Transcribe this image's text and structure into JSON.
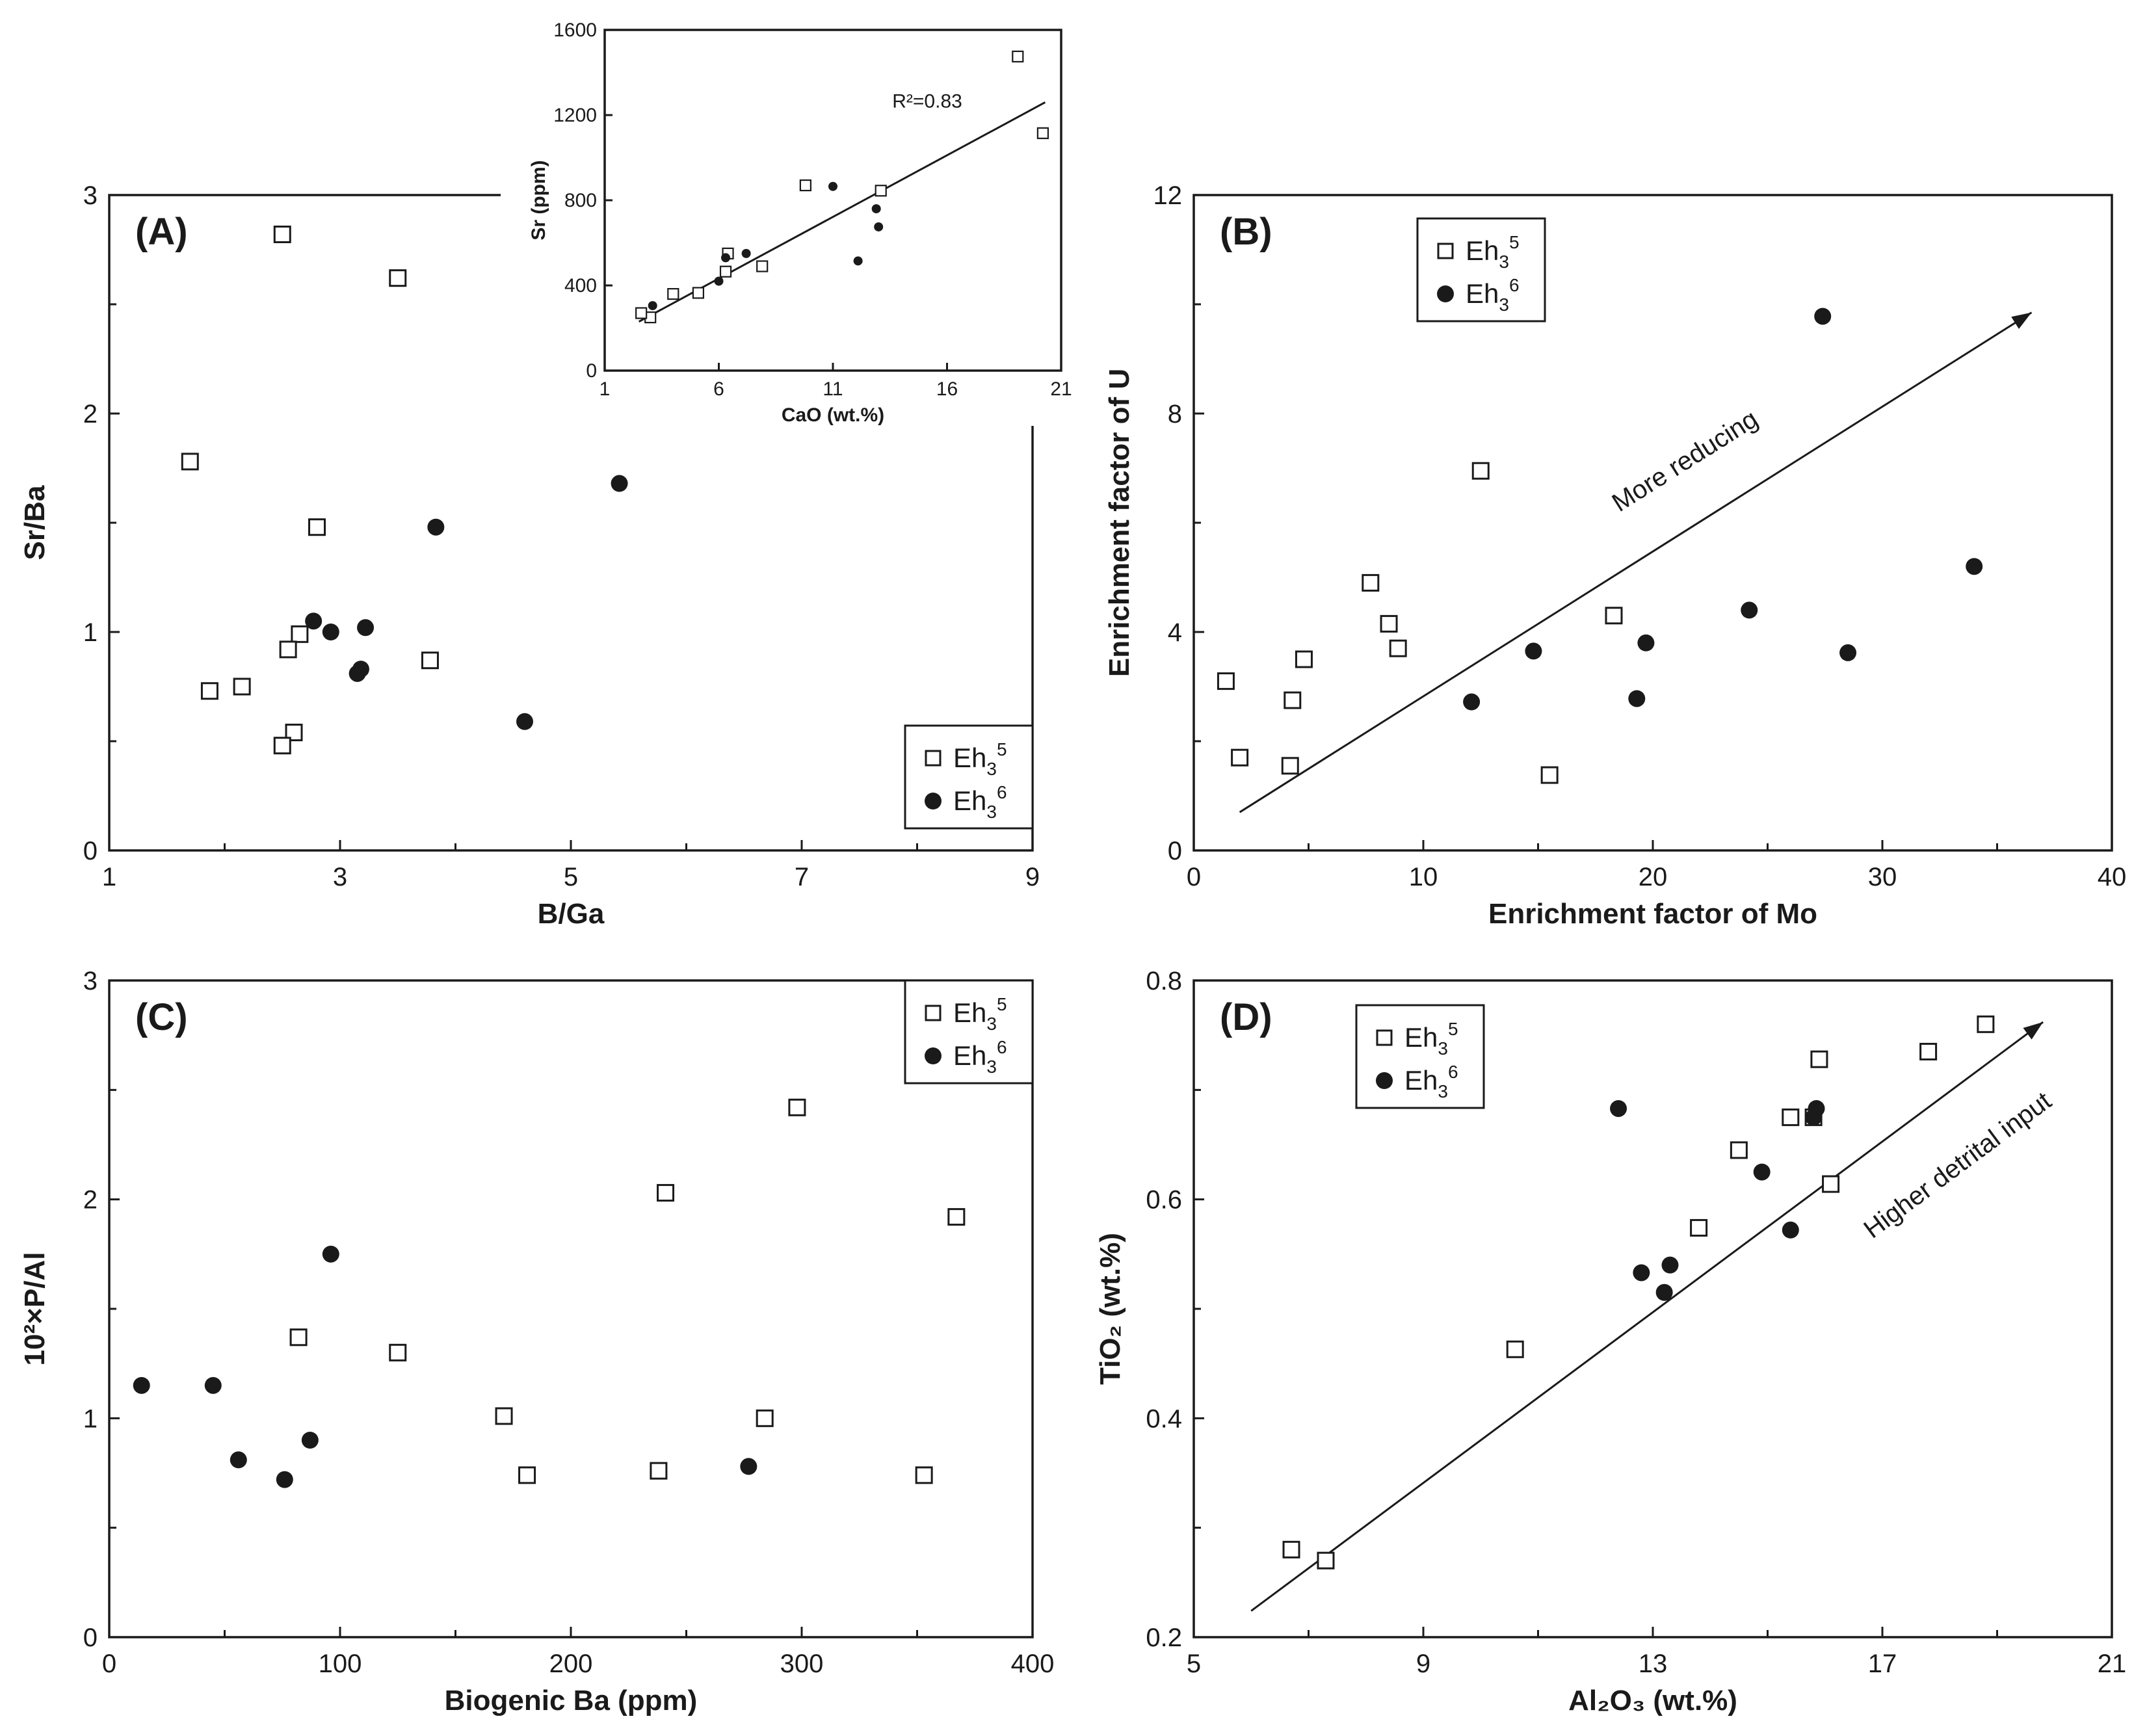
{
  "chart_data": [
    {
      "id": "A",
      "type": "scatter",
      "panel_label": "(A)",
      "xlabel": "B/Ga",
      "ylabel": "Sr/Ba",
      "xlim": [
        1,
        9
      ],
      "ylim": [
        0,
        3
      ],
      "xticks": [
        1,
        3,
        5,
        7,
        9
      ],
      "xticks_minor": [
        2,
        4,
        6,
        8
      ],
      "yticks": [
        0,
        1,
        2,
        3
      ],
      "yticks_minor": [
        0.5,
        1.5,
        2.5
      ],
      "legend": {
        "position": "bottom-right",
        "labels": [
          {
            "base": "Eh",
            "sub": "3",
            "sup": "5"
          },
          {
            "base": "Eh",
            "sub": "3",
            "sup": "6"
          }
        ]
      },
      "series": [
        {
          "name": "Eh3^5",
          "marker": "square-open",
          "x": [
            2.5,
            3.5,
            1.7,
            2.8,
            2.65,
            2.55,
            1.87,
            2.15,
            2.6,
            2.5,
            3.78
          ],
          "y": [
            2.82,
            2.62,
            1.78,
            1.48,
            0.99,
            0.92,
            0.73,
            0.75,
            0.54,
            0.48,
            0.87
          ]
        },
        {
          "name": "Eh3^6",
          "marker": "circle-filled",
          "x": [
            5.42,
            3.83,
            2.77,
            2.92,
            3.22,
            3.15,
            3.18,
            4.6
          ],
          "y": [
            1.68,
            1.48,
            1.05,
            1.0,
            1.02,
            0.81,
            0.83,
            0.59
          ]
        }
      ]
    },
    {
      "id": "A-inset",
      "type": "scatter",
      "panel_label": "",
      "xlabel": "CaO (wt.%)",
      "ylabel": "Sr (ppm)",
      "xlim": [
        1,
        21
      ],
      "ylim": [
        0,
        1600
      ],
      "xticks": [
        1,
        6,
        11,
        16,
        21
      ],
      "yticks": [
        0,
        400,
        800,
        1200,
        1600
      ],
      "annotation": "R²=0.83",
      "trendline": {
        "x": [
          2.5,
          20.3
        ],
        "y": [
          230,
          1260
        ]
      },
      "series": [
        {
          "name": "Eh3^5",
          "marker": "square-open",
          "x": [
            19.1,
            20.2,
            9.8,
            13.1,
            6.4,
            6.3,
            7.9,
            5.1,
            4.0,
            3.0,
            2.6
          ],
          "y": [
            1475,
            1115,
            870,
            845,
            550,
            465,
            490,
            365,
            360,
            250,
            270
          ]
        },
        {
          "name": "Eh3^6",
          "marker": "circle-filled",
          "x": [
            11.0,
            12.9,
            13.0,
            7.2,
            6.3,
            6.0,
            12.1,
            3.1
          ],
          "y": [
            865,
            760,
            675,
            550,
            530,
            420,
            515,
            305
          ]
        }
      ]
    },
    {
      "id": "B",
      "type": "scatter",
      "panel_label": "(B)",
      "xlabel": "Enrichment factor of Mo",
      "ylabel": "Enrichment factor of U",
      "xlim": [
        0,
        40
      ],
      "ylim": [
        0,
        12
      ],
      "xticks": [
        0,
        10,
        20,
        30,
        40
      ],
      "xticks_minor": [
        5,
        15,
        25,
        35
      ],
      "yticks": [
        0,
        4,
        8,
        12
      ],
      "yticks_minor": [
        2,
        6,
        10
      ],
      "legend": {
        "position": "top-left",
        "labels": [
          {
            "base": "Eh",
            "sub": "3",
            "sup": "5"
          },
          {
            "base": "Eh",
            "sub": "3",
            "sup": "6"
          }
        ]
      },
      "annotation": "More reducing",
      "trendline": {
        "x": [
          2.0,
          36.5
        ],
        "y": [
          0.7,
          9.85
        ]
      },
      "series": [
        {
          "name": "Eh3^5",
          "marker": "square-open",
          "x": [
            12.5,
            7.7,
            8.5,
            8.9,
            18.3,
            4.8,
            1.4,
            4.3,
            2.0,
            4.2,
            15.5
          ],
          "y": [
            6.95,
            4.9,
            4.15,
            3.7,
            4.3,
            3.5,
            3.1,
            2.75,
            1.7,
            1.55,
            1.38
          ]
        },
        {
          "name": "Eh3^6",
          "marker": "circle-filled",
          "x": [
            27.4,
            34.0,
            24.2,
            19.7,
            14.8,
            28.5,
            19.3,
            12.1
          ],
          "y": [
            9.78,
            5.2,
            4.4,
            3.8,
            3.65,
            3.62,
            2.78,
            2.72
          ]
        }
      ]
    },
    {
      "id": "C",
      "type": "scatter",
      "panel_label": "(C)",
      "xlabel": "Biogenic Ba (ppm)",
      "ylabel": "10²×P/Al",
      "xlim": [
        0,
        400
      ],
      "ylim": [
        0,
        3
      ],
      "xticks": [
        0,
        100,
        200,
        300,
        400
      ],
      "xticks_minor": [
        50,
        150,
        250,
        350
      ],
      "yticks": [
        0,
        1,
        2,
        3
      ],
      "yticks_minor": [
        0.5,
        1.5,
        2.5
      ],
      "legend": {
        "position": "top-right",
        "labels": [
          {
            "base": "Eh",
            "sub": "3",
            "sup": "5"
          },
          {
            "base": "Eh",
            "sub": "3",
            "sup": "6"
          }
        ]
      },
      "series": [
        {
          "name": "Eh3^5",
          "marker": "square-open",
          "x": [
            298,
            241,
            367,
            82,
            125,
            171,
            284,
            181,
            238,
            353
          ],
          "y": [
            2.42,
            2.03,
            1.92,
            1.37,
            1.3,
            1.01,
            1.0,
            0.74,
            0.76,
            0.74
          ]
        },
        {
          "name": "Eh3^6",
          "marker": "circle-filled",
          "x": [
            96,
            14,
            45,
            56,
            87,
            76,
            277
          ],
          "y": [
            1.75,
            1.15,
            1.15,
            0.81,
            0.9,
            0.72,
            0.78
          ]
        }
      ]
    },
    {
      "id": "D",
      "type": "scatter",
      "panel_label": "(D)",
      "xlabel": "Al₂O₃ (wt.%)",
      "ylabel": "TiO₂ (wt.%)",
      "xlim": [
        5,
        21
      ],
      "ylim": [
        0.2,
        0.8
      ],
      "xticks": [
        5,
        9,
        13,
        17,
        21
      ],
      "xticks_minor": [
        7,
        11,
        15,
        19
      ],
      "yticks": [
        0.2,
        0.4,
        0.6,
        0.8
      ],
      "yticks_minor": [
        0.3,
        0.5,
        0.7
      ],
      "legend": {
        "position": "top-left",
        "labels": [
          {
            "base": "Eh",
            "sub": "3",
            "sup": "5"
          },
          {
            "base": "Eh",
            "sub": "3",
            "sup": "6"
          }
        ]
      },
      "annotation": "Higher detrital input",
      "trendline": {
        "x": [
          6.0,
          19.8
        ],
        "y": [
          0.224,
          0.762
        ]
      },
      "series": [
        {
          "name": "Eh3^5",
          "marker": "square-open",
          "x": [
            18.8,
            17.8,
            15.9,
            15.4,
            14.5,
            16.1,
            13.8,
            10.6,
            6.7,
            7.3,
            15.8
          ],
          "y": [
            0.76,
            0.735,
            0.728,
            0.675,
            0.645,
            0.614,
            0.574,
            0.463,
            0.28,
            0.27,
            0.675
          ]
        },
        {
          "name": "Eh3^6",
          "marker": "circle-filled",
          "x": [
            12.4,
            15.8,
            15.85,
            14.9,
            15.4,
            13.3,
            12.8,
            13.2
          ],
          "y": [
            0.683,
            0.675,
            0.683,
            0.625,
            0.572,
            0.54,
            0.533,
            0.515
          ]
        }
      ]
    }
  ]
}
